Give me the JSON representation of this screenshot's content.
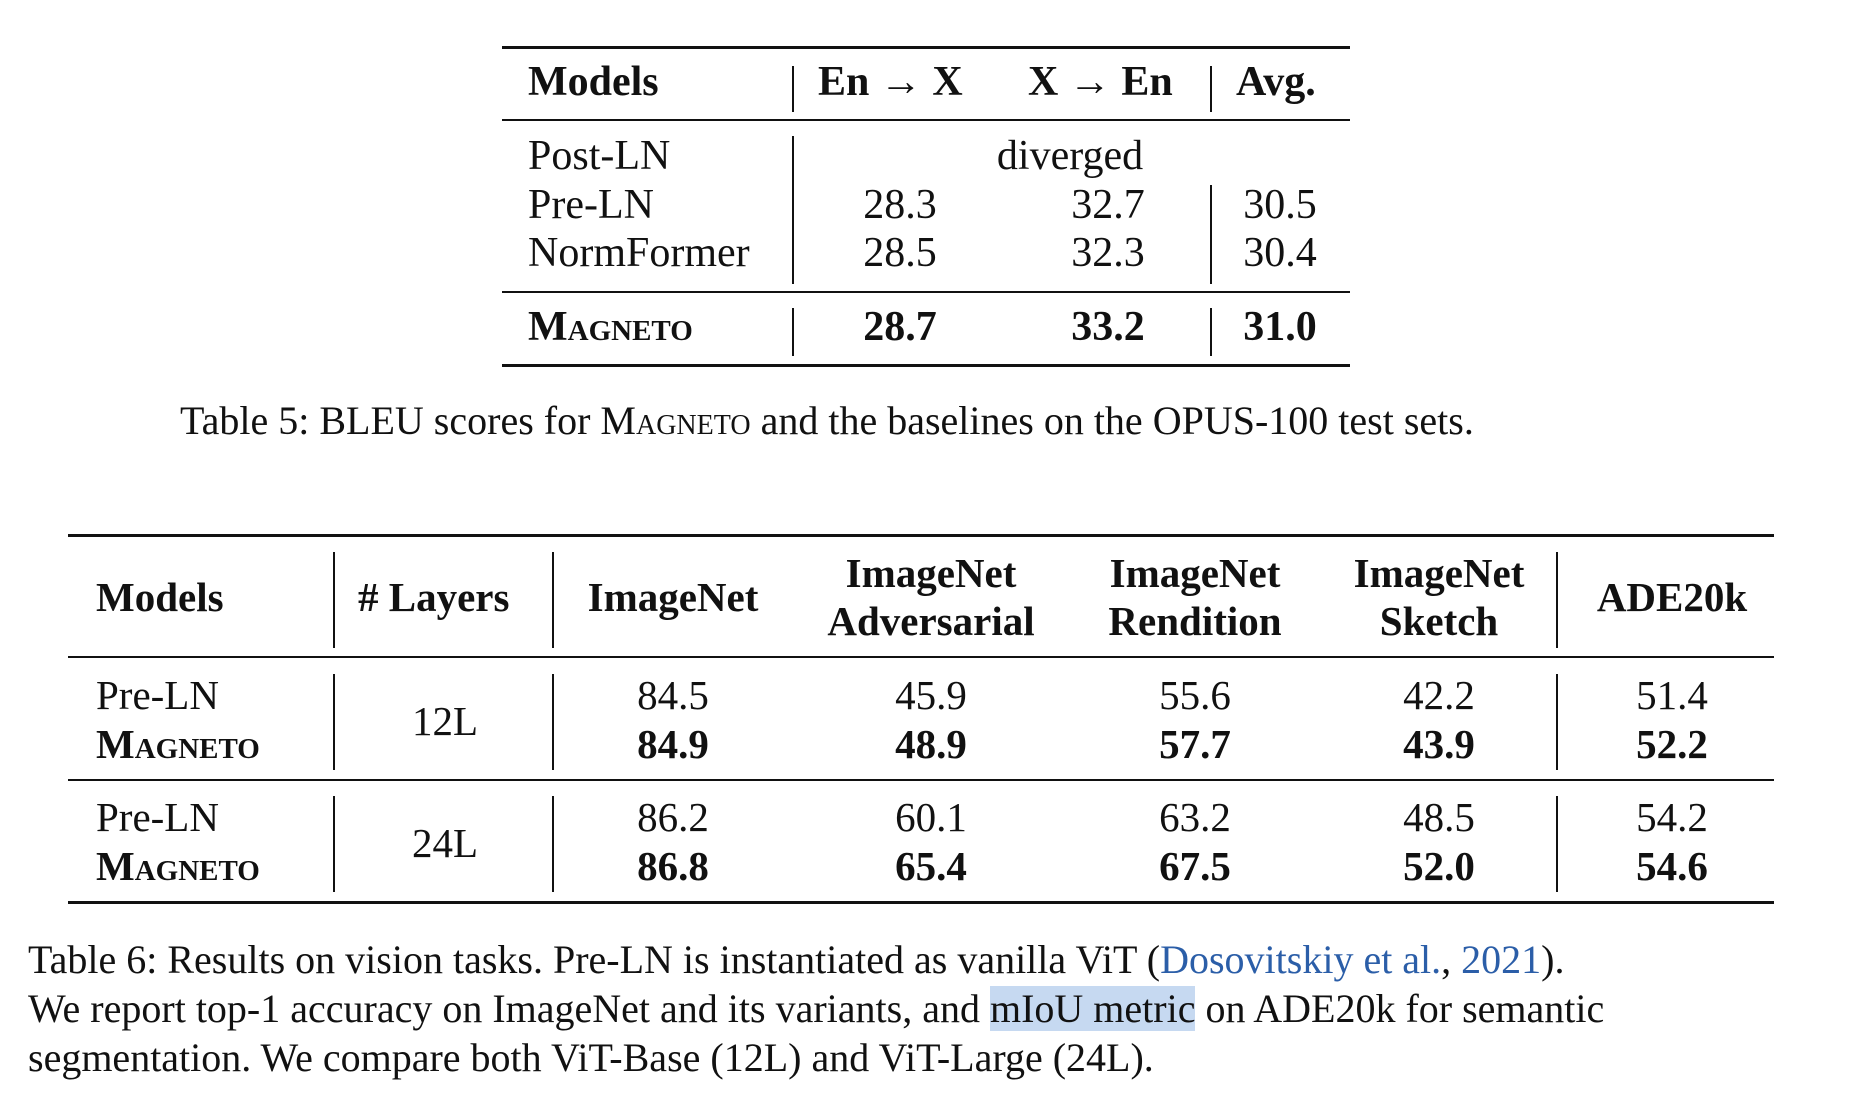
{
  "table5": {
    "header": {
      "models": "Models",
      "en_to_x": "En → X",
      "x_to_en": "X → En",
      "avg": "Avg."
    },
    "rows": [
      {
        "model": "Post-LN",
        "note": "diverged"
      },
      {
        "model": "Pre-LN",
        "en_to_x": "28.3",
        "x_to_en": "32.7",
        "avg": "30.5"
      },
      {
        "model": "NormFormer",
        "en_to_x": "28.5",
        "x_to_en": "32.3",
        "avg": "30.4"
      },
      {
        "model": "Magneto",
        "en_to_x": "28.7",
        "x_to_en": "33.2",
        "avg": "31.0"
      }
    ],
    "caption": {
      "prefix": "Table 5: BLEU scores for ",
      "name": "Magneto",
      "suffix": " and the baselines on the OPUS-100 test sets."
    }
  },
  "table6": {
    "header": {
      "models": "Models",
      "layers": "# Layers",
      "imagenet": "ImageNet",
      "adv_1": "ImageNet",
      "adv_2": "Adversarial",
      "rend_1": "ImageNet",
      "rend_2": "Rendition",
      "sketch_1": "ImageNet",
      "sketch_2": "Sketch",
      "ade": "ADE20k"
    },
    "groups": [
      {
        "layers": "12L",
        "rows": [
          {
            "model": "Pre-LN",
            "imagenet": "84.5",
            "adversarial": "45.9",
            "rendition": "55.6",
            "sketch": "42.2",
            "ade20k": "51.4"
          },
          {
            "model": "Magneto",
            "imagenet": "84.9",
            "adversarial": "48.9",
            "rendition": "57.7",
            "sketch": "43.9",
            "ade20k": "52.2"
          }
        ]
      },
      {
        "layers": "24L",
        "rows": [
          {
            "model": "Pre-LN",
            "imagenet": "86.2",
            "adversarial": "60.1",
            "rendition": "63.2",
            "sketch": "48.5",
            "ade20k": "54.2"
          },
          {
            "model": "Magneto",
            "imagenet": "86.8",
            "adversarial": "65.4",
            "rendition": "67.5",
            "sketch": "52.0",
            "ade20k": "54.6"
          }
        ]
      }
    ],
    "caption": {
      "l1_a": "Table 6: Results on vision tasks. Pre-LN is instantiated as vanilla ViT (",
      "l1_cite_author": "Dosovitskiy et al.",
      "l1_comma": ", ",
      "l1_cite_year": "2021",
      "l1_b": ").",
      "l2_a": "We report top-1 accuracy on ImageNet and its variants, and ",
      "l2_hl": "mIoU metric",
      "l2_b": " on ADE20k for semantic",
      "l3": "segmentation. We compare both ViT-Base (12L) and ViT-Large (24L)."
    }
  }
}
